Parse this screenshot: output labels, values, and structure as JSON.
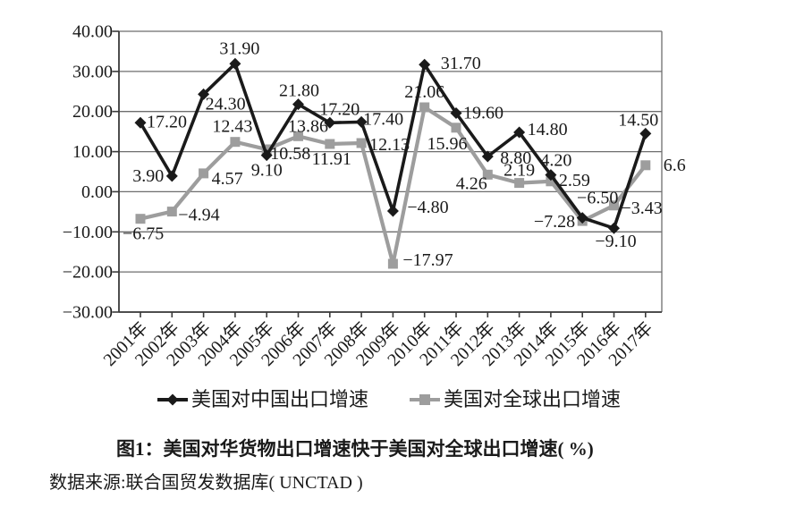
{
  "figure": {
    "source": "数据来源:联合国贸发数据库( UNCTAD )"
  },
  "chart_data": {
    "type": "line",
    "title": "图1：美国对华货物出口增速快于美国对全球出口增速( %)",
    "categories": [
      "2001年",
      "2002年",
      "2003年",
      "2004年",
      "2005年",
      "2006年",
      "2007年",
      "2008年",
      "2009年",
      "2010年",
      "2011年",
      "2012年",
      "2013年",
      "2014年",
      "2015年",
      "2016年",
      "2017年"
    ],
    "series": [
      {
        "name": "美国对中国出口增速",
        "color": "#1a1a1a",
        "marker": "diamond",
        "values": [
          17.2,
          3.9,
          24.3,
          31.9,
          9.1,
          21.8,
          17.2,
          17.4,
          -4.8,
          31.7,
          19.6,
          8.8,
          14.8,
          4.2,
          -6.5,
          -9.1,
          14.5
        ],
        "labels": [
          "17.20",
          "3.90",
          "24.30",
          "31.90",
          "9.10",
          "21.80",
          "17.20",
          "17.40",
          "−4.80",
          "31.70",
          "19.60",
          "8.80",
          "14.80",
          "4.20",
          "−6.50",
          "−9.10",
          "14.50"
        ],
        "label_layout": [
          [
            7,
            5,
            "start"
          ],
          [
            -9,
            6,
            "end"
          ],
          [
            2,
            17,
            "start"
          ],
          [
            5,
            -11,
            "middle"
          ],
          [
            0,
            23,
            "middle"
          ],
          [
            1,
            -9,
            "middle"
          ],
          [
            11,
            -9,
            "middle"
          ],
          [
            2,
            3,
            "start"
          ],
          [
            16,
            2,
            "start"
          ],
          [
            18,
            5,
            "start"
          ],
          [
            8,
            6,
            "start"
          ],
          [
            14,
            8,
            "start"
          ],
          [
            9,
            3,
            "start"
          ],
          [
            6,
            -10,
            "middle"
          ],
          [
            17,
            -16,
            "middle"
          ],
          [
            2,
            21,
            "middle"
          ],
          [
            -8,
            -9,
            "middle"
          ]
        ]
      },
      {
        "name": "美国对全球出口增速",
        "color": "#9d9d9d",
        "marker": "square",
        "values": [
          -6.75,
          -4.94,
          4.57,
          12.43,
          10.58,
          13.86,
          11.91,
          12.13,
          -17.97,
          21.06,
          15.96,
          4.26,
          2.19,
          2.59,
          -7.28,
          -3.43,
          6.6
        ],
        "labels": [
          "−6.75",
          "−4.94",
          "4.57",
          "12.43",
          "10.58",
          "13.86",
          "11.91",
          "12.13",
          "−17.97",
          "21.06",
          "15.96",
          "4.26",
          "2.19",
          "2.59",
          "−7.28",
          "−3.43",
          "6.6"
        ],
        "label_layout": [
          [
            -20,
            23,
            "start"
          ],
          [
            7,
            10,
            "start"
          ],
          [
            9,
            12,
            "start"
          ],
          [
            -3,
            -11,
            "middle"
          ],
          [
            4,
            11,
            "start"
          ],
          [
            11,
            -5,
            "middle"
          ],
          [
            2,
            23,
            "middle"
          ],
          [
            9,
            8,
            "start"
          ],
          [
            11,
            2,
            "start"
          ],
          [
            0,
            -11,
            "middle"
          ],
          [
            -10,
            24,
            "middle"
          ],
          [
            -18,
            16,
            "middle"
          ],
          [
            0,
            -8,
            "middle"
          ],
          [
            9,
            5,
            "start"
          ],
          [
            -8,
            7,
            "end"
          ],
          [
            8,
            9,
            "start"
          ],
          [
            20,
            6,
            "start"
          ]
        ]
      }
    ],
    "ylim": [
      -30,
      40
    ],
    "ytick_step": 10,
    "ytick_labels": [
      "40.00",
      "30.00",
      "20.00",
      "10.00",
      "0.00",
      "−10.00",
      "−20.00",
      "−30.00"
    ],
    "grid": true,
    "xtick_rotation": -45,
    "legend_position": "bottom"
  }
}
